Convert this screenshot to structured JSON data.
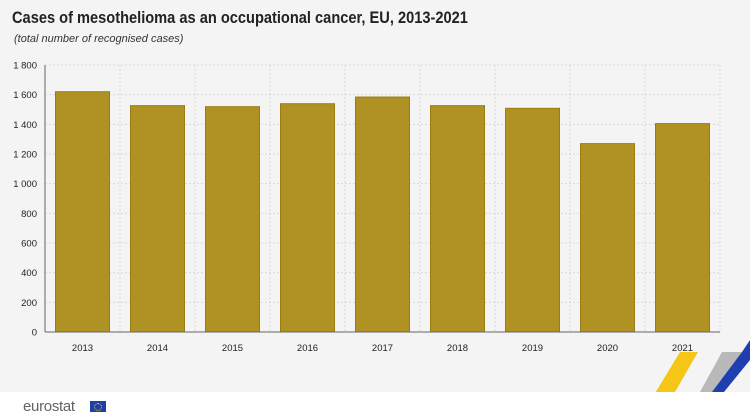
{
  "chart_data": {
    "type": "bar",
    "title": "Cases of mesothelioma as an occupational cancer, EU, 2013-2021",
    "subtitle": "(total number of recognised cases)",
    "categories": [
      "2013",
      "2014",
      "2015",
      "2016",
      "2017",
      "2018",
      "2019",
      "2020",
      "2021"
    ],
    "values": [
      1620,
      1526,
      1519,
      1539,
      1584,
      1526,
      1508,
      1270,
      1405
    ],
    "ylim": [
      0,
      1800
    ],
    "yticks": [
      0,
      200,
      400,
      600,
      800,
      1000,
      1200,
      1400,
      1600,
      1800
    ],
    "ytick_labels": [
      "0",
      "200",
      "400",
      "600",
      "800",
      "1 000",
      "1 200",
      "1 400",
      "1 600",
      "1 800"
    ],
    "xlabel": "",
    "ylabel": "",
    "grid": true,
    "bar_color": "#b09224"
  },
  "footer": {
    "logo": "eurostat"
  }
}
